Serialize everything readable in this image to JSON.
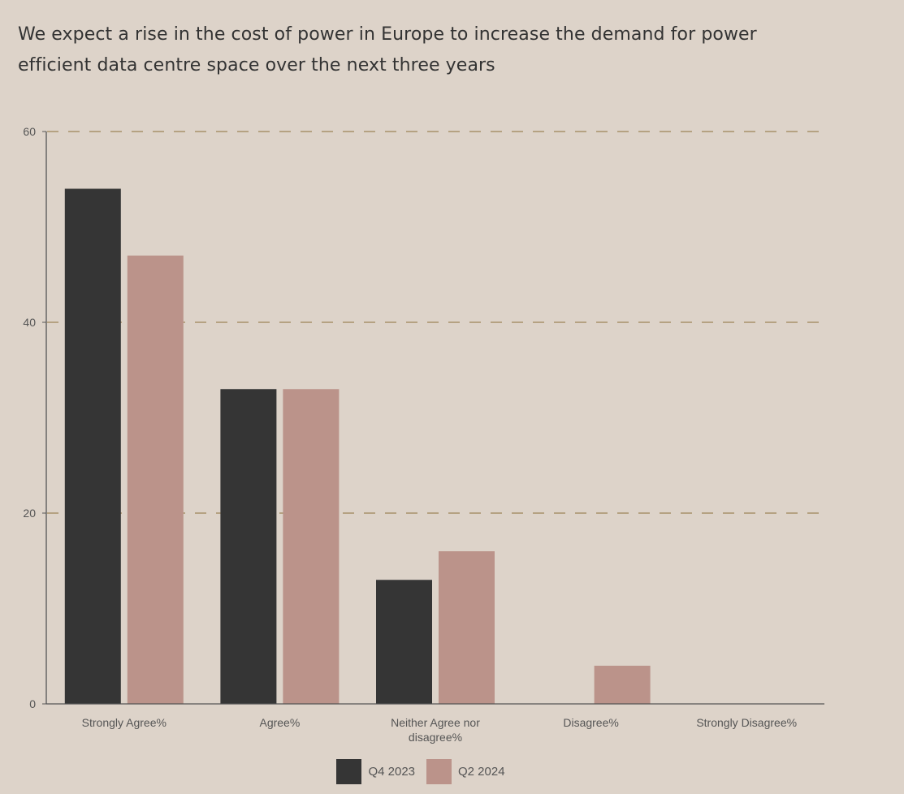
{
  "chart_data": {
    "type": "bar",
    "title": "We expect a rise in the cost of power in Europe to increase the demand for power efficient data centre space over the next three years",
    "categories": [
      "Strongly Agree%",
      "Agree%",
      "Neither Agree nor disagree%",
      "Disagree%",
      "Strongly Disagree%"
    ],
    "series": [
      {
        "name": "Q4 2023",
        "color": "#353535",
        "values": [
          54,
          33,
          13,
          0,
          0
        ]
      },
      {
        "name": "Q2 2024",
        "color": "#bb938a",
        "values": [
          47,
          33,
          16,
          4,
          0
        ]
      }
    ],
    "ylim": [
      0,
      60
    ],
    "yticks": [
      0,
      20,
      40,
      60
    ],
    "grid": true,
    "gridline_color": "#a8916a",
    "legend": "bottom-center"
  }
}
